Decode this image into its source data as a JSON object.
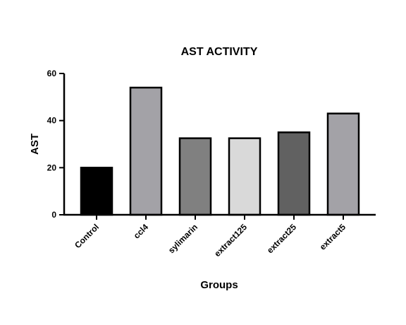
{
  "chart_data": {
    "type": "bar",
    "title": "AST ACTIVITY",
    "xlabel": "Groups",
    "ylabel": "AST",
    "categories": [
      "Control",
      "ccl4",
      "sylimarin",
      "extract125",
      "extract25",
      "extract5"
    ],
    "values": [
      20,
      54,
      32.5,
      32.5,
      35,
      43
    ],
    "colors": [
      "#000000",
      "#a3a2a7",
      "#808080",
      "#d9d9d9",
      "#616161",
      "#a3a2a7"
    ],
    "ylim": [
      0,
      60
    ],
    "yticks": [
      "0",
      "20",
      "40",
      "60"
    ],
    "grid": false,
    "legend": "none"
  }
}
